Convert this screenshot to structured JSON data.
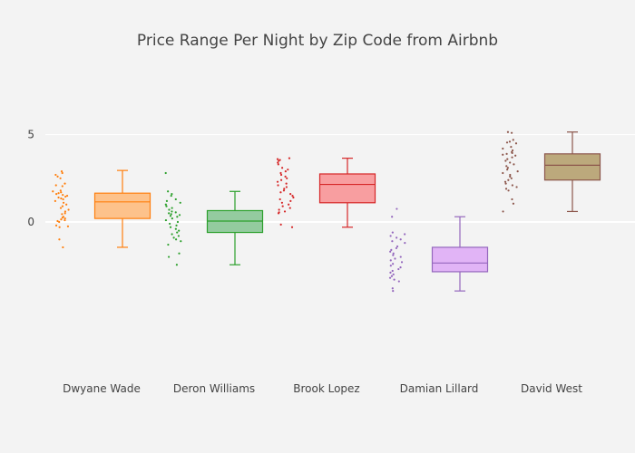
{
  "chart_data": {
    "type": "box",
    "title": "Price Range Per Night by Zip Code from Airbnb",
    "xlabel": "",
    "ylabel": "",
    "ylim": [
      -8.3,
      8.3
    ],
    "yticks": [
      0,
      5
    ],
    "grid": true,
    "zero_line": true,
    "series": [
      {
        "name": "Dwyane Wade",
        "color": "#ff7f0e",
        "fill": "#fdbf85",
        "min": -1.45,
        "q1": 0.2,
        "median": 1.15,
        "q3": 1.65,
        "max": 2.95,
        "points": [
          2.9,
          2.8,
          2.7,
          2.6,
          2.5,
          2.2,
          2.1,
          2.05,
          1.8,
          1.75,
          1.7,
          1.65,
          1.6,
          1.55,
          1.5,
          1.45,
          1.4,
          1.35,
          1.3,
          1.2,
          1.1,
          1.0,
          0.9,
          0.8,
          0.7,
          0.6,
          0.5,
          0.45,
          0.3,
          0.25,
          0.2,
          0.15,
          0.1,
          0.05,
          0.0,
          -0.2,
          -0.25,
          -0.3,
          -1.0,
          -1.45
        ]
      },
      {
        "name": "Deron Williams",
        "color": "#2ca02c",
        "fill": "#8ec89a",
        "min": -2.45,
        "q1": -0.6,
        "median": 0.05,
        "q3": 0.65,
        "max": 1.75,
        "points": [
          2.8,
          1.75,
          1.6,
          1.5,
          1.3,
          1.2,
          1.1,
          1.0,
          0.9,
          0.8,
          0.7,
          0.6,
          0.55,
          0.5,
          0.45,
          0.4,
          0.35,
          0.3,
          0.2,
          0.1,
          0.0,
          -0.1,
          -0.2,
          -0.3,
          -0.4,
          -0.5,
          -0.6,
          -0.7,
          -0.8,
          -0.9,
          -1.0,
          -1.1,
          -1.3,
          -1.8,
          -2.0,
          -2.45
        ]
      },
      {
        "name": "Brook Lopez",
        "color": "#d62728",
        "fill": "#f8999b",
        "min": -0.3,
        "q1": 1.1,
        "median": 2.15,
        "q3": 2.75,
        "max": 3.65,
        "points": [
          3.65,
          3.6,
          3.55,
          3.5,
          3.4,
          3.3,
          3.1,
          3.0,
          2.9,
          2.8,
          2.7,
          2.6,
          2.5,
          2.4,
          2.3,
          2.2,
          2.1,
          2.0,
          1.9,
          1.8,
          1.7,
          1.6,
          1.5,
          1.4,
          1.3,
          1.2,
          1.1,
          1.0,
          0.9,
          0.8,
          0.7,
          0.6,
          0.55,
          0.5,
          -0.15,
          -0.3
        ]
      },
      {
        "name": "Damian Lillard",
        "color": "#9467bd",
        "fill": "#dfb0f6",
        "min": -3.95,
        "q1": -2.85,
        "median": -2.35,
        "q3": -1.45,
        "max": 0.3,
        "points": [
          0.75,
          0.3,
          -0.6,
          -0.7,
          -0.8,
          -0.9,
          -1.0,
          -1.1,
          -1.2,
          -1.4,
          -1.5,
          -1.6,
          -1.7,
          -1.8,
          -1.9,
          -2.0,
          -2.1,
          -2.2,
          -2.3,
          -2.4,
          -2.5,
          -2.6,
          -2.7,
          -2.8,
          -2.9,
          -3.0,
          -3.1,
          -3.2,
          -3.3,
          -3.4,
          -3.8,
          -3.95
        ]
      },
      {
        "name": "David West",
        "color": "#8c564b",
        "fill": "#b8a475",
        "min": 0.6,
        "q1": 2.4,
        "median": 3.25,
        "q3": 3.9,
        "max": 5.15,
        "points": [
          5.15,
          5.1,
          4.7,
          4.6,
          4.55,
          4.5,
          4.3,
          4.2,
          4.1,
          4.0,
          3.95,
          3.9,
          3.85,
          3.8,
          3.7,
          3.6,
          3.5,
          3.4,
          3.3,
          3.2,
          3.1,
          3.0,
          2.9,
          2.8,
          2.7,
          2.6,
          2.5,
          2.4,
          2.3,
          2.2,
          2.1,
          2.0,
          1.9,
          1.8,
          1.3,
          1.05,
          0.6
        ]
      }
    ]
  }
}
